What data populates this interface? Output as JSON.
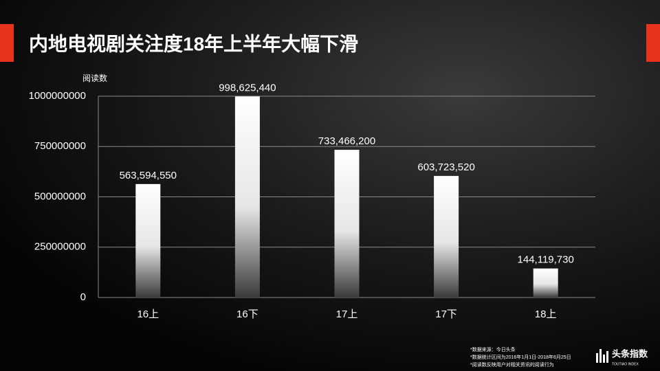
{
  "chart_data": {
    "type": "bar",
    "title": "内地电视剧关注度18年上半年大幅下滑",
    "y_label": "阅读数",
    "categories": [
      "16上",
      "16下",
      "17上",
      "17下",
      "18上"
    ],
    "values": [
      563594550,
      998625440,
      733466200,
      603723520,
      144119730
    ],
    "value_labels": [
      "563,594,550",
      "998,625,440",
      "733,466,200",
      "603,723,520",
      "144,119,730"
    ],
    "ylim": [
      0,
      1000000000
    ],
    "yticks": [
      0,
      250000000,
      500000000,
      750000000,
      1000000000
    ],
    "grid": true
  },
  "footnotes": [
    "*数据来源：今日头条",
    "*数据统计区间为2016年1月1日-2018年6月25日",
    "*阅读数反映用户对相关资讯的阅读行为"
  ],
  "logo": {
    "name": "头条指数",
    "subtitle": "TOUTIAO INDEX"
  }
}
